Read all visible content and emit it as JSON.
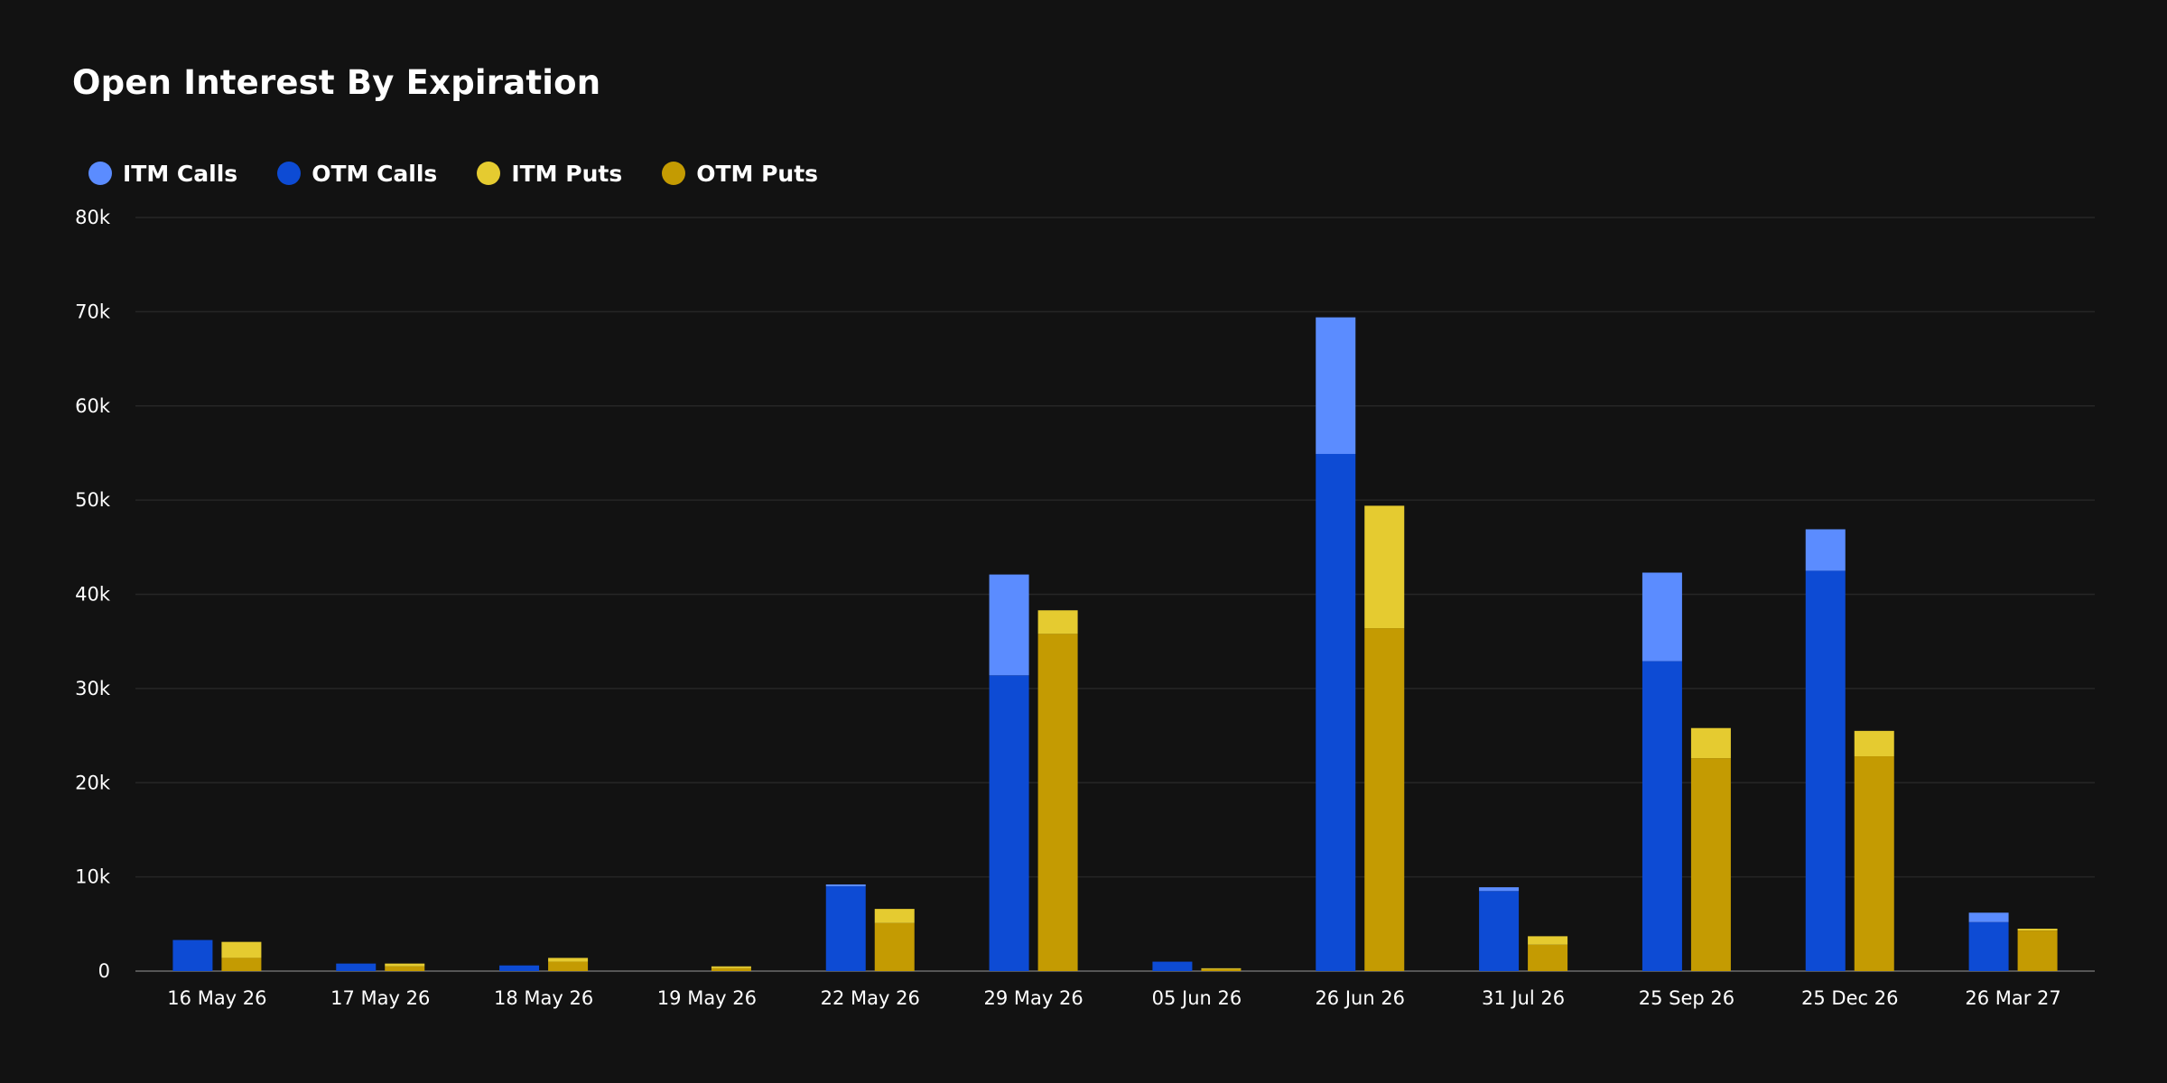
{
  "chart_data": {
    "type": "bar",
    "stacked": true,
    "title": "Open Interest By Expiration",
    "xlabel": "",
    "ylabel": "",
    "ylim": [
      0,
      80000
    ],
    "yticks": [
      {
        "value": 0,
        "label": "0"
      },
      {
        "value": 10000,
        "label": "10k"
      },
      {
        "value": 20000,
        "label": "20k"
      },
      {
        "value": 30000,
        "label": "30k"
      },
      {
        "value": 40000,
        "label": "40k"
      },
      {
        "value": 50000,
        "label": "50k"
      },
      {
        "value": 60000,
        "label": "60k"
      },
      {
        "value": 70000,
        "label": "70k"
      },
      {
        "value": 80000,
        "label": "80k"
      }
    ],
    "grid": true,
    "legend_position": "top-left",
    "categories": [
      "16 May 26",
      "17 May 26",
      "18 May 26",
      "19 May 26",
      "22 May 26",
      "29 May 26",
      "05 Jun 26",
      "26 Jun 26",
      "31 Jul 26",
      "25 Sep 26",
      "25 Dec 26",
      "26 Mar 27"
    ],
    "series": [
      {
        "name": "ITM Calls",
        "stack": "calls",
        "color": "#5b8cff",
        "values": [
          0,
          0,
          0,
          0,
          200,
          10700,
          0,
          14500,
          400,
          9400,
          4400,
          1000
        ]
      },
      {
        "name": "OTM Calls",
        "stack": "calls",
        "color": "#0d4bd4",
        "values": [
          3300,
          800,
          600,
          0,
          9000,
          31400,
          1000,
          54900,
          8500,
          32900,
          42500,
          5200
        ]
      },
      {
        "name": "ITM Puts",
        "stack": "puts",
        "color": "#e5cb30",
        "values": [
          1700,
          300,
          400,
          200,
          1500,
          2500,
          100,
          13000,
          900,
          3200,
          2700,
          200
        ]
      },
      {
        "name": "OTM Puts",
        "stack": "puts",
        "color": "#c49b02",
        "values": [
          1400,
          500,
          1000,
          300,
          5100,
          35800,
          200,
          36400,
          2800,
          22600,
          22800,
          4300
        ]
      }
    ]
  }
}
